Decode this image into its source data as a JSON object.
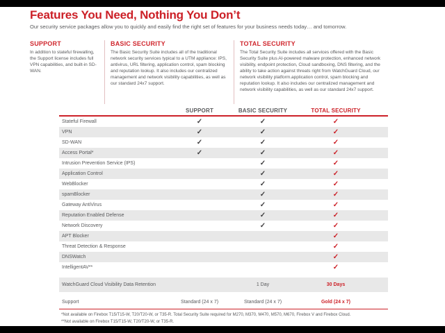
{
  "page": {
    "title": "Features You Need, Nothing You Don’t",
    "subtitle": "Our security service packages allow you to quickly and easily find the right set of features for your business needs today… and tomorrow.",
    "accent_color": "#cc2027",
    "text_color": "#58595b",
    "shaded_row_color": "#e8e8e8"
  },
  "packages": [
    {
      "name": "SUPPORT",
      "description": "In addition to stateful firewalling, the Support license includes full VPN capabilities, and built-in SD-WAN."
    },
    {
      "name": "BASIC SECURITY",
      "description": "The Basic Security Suite includes all of the traditional network security services typical to a UTM appliance: IPS, antivirus, URL filtering, application control, spam blocking and reputation lookup. It also includes our centralized management and network visibility capabilities, as well as our standard 24x7 support."
    },
    {
      "name": "TOTAL SECURITY",
      "description": "The Total Security Suite includes all services offered with the Basic Security Suite plus AI-powered malware protection, enhanced network visibility, endpoint protection, Cloud sandboxing, DNS filtering, and the ability to take action against threats right from WatchGuard Cloud, our network visibility platform.application control, spam blocking and reputation lookup. It also includes our centralized management and network visibility capabilities, as well as our standard 24x7 support."
    }
  ],
  "table": {
    "columns": {
      "support": "SUPPORT",
      "basic": "BASIC SECURITY",
      "total": "TOTAL SECURITY"
    },
    "check_glyph": "✓",
    "rows": [
      {
        "feature": "Stateful Firewall",
        "support": true,
        "basic": true,
        "total": true
      },
      {
        "feature": "VPN",
        "support": true,
        "basic": true,
        "total": true
      },
      {
        "feature": "SD-WAN",
        "support": true,
        "basic": true,
        "total": true
      },
      {
        "feature": "Access Portal*",
        "support": true,
        "basic": true,
        "total": true
      },
      {
        "feature": "Intrusion Prevention Service (IPS)",
        "support": false,
        "basic": true,
        "total": true
      },
      {
        "feature": "Application Control",
        "support": false,
        "basic": true,
        "total": true
      },
      {
        "feature": "WebBlocker",
        "support": false,
        "basic": true,
        "total": true
      },
      {
        "feature": "spamBlocker",
        "support": false,
        "basic": true,
        "total": true
      },
      {
        "feature": "Gateway AntiVirus",
        "support": false,
        "basic": true,
        "total": true
      },
      {
        "feature": "Reputation Enabled Defense",
        "support": false,
        "basic": true,
        "total": true
      },
      {
        "feature": "Network Discovery",
        "support": false,
        "basic": true,
        "total": true
      },
      {
        "feature": "APT Blocker",
        "support": false,
        "basic": false,
        "total": true
      },
      {
        "feature": "Threat Detection & Response",
        "support": false,
        "basic": false,
        "total": true
      },
      {
        "feature": "DNSWatch",
        "support": false,
        "basic": false,
        "total": true
      },
      {
        "feature": "IntelligentAV**",
        "support": false,
        "basic": false,
        "total": true
      },
      {
        "feature": "WatchGuard Cloud Visibility Data Retention",
        "support": "",
        "basic": "1 Day",
        "total": "30 Days",
        "kind": "retention"
      },
      {
        "feature": "Support",
        "support": "Standard (24 x 7)",
        "basic": "Standard (24 x 7)",
        "total": "Gold (24 x 7)",
        "kind": "support"
      }
    ]
  },
  "footnotes": [
    "*Not available on Firebox T15/T15-W, T20/T20-W, or T35-R. Total Security Suite required for M270, M370, M470, M570, M670, Firebox V and Firebox Cloud.",
    "**Not available on Firebox T15/T15-W, T20/T20-W, or T35-R."
  ]
}
